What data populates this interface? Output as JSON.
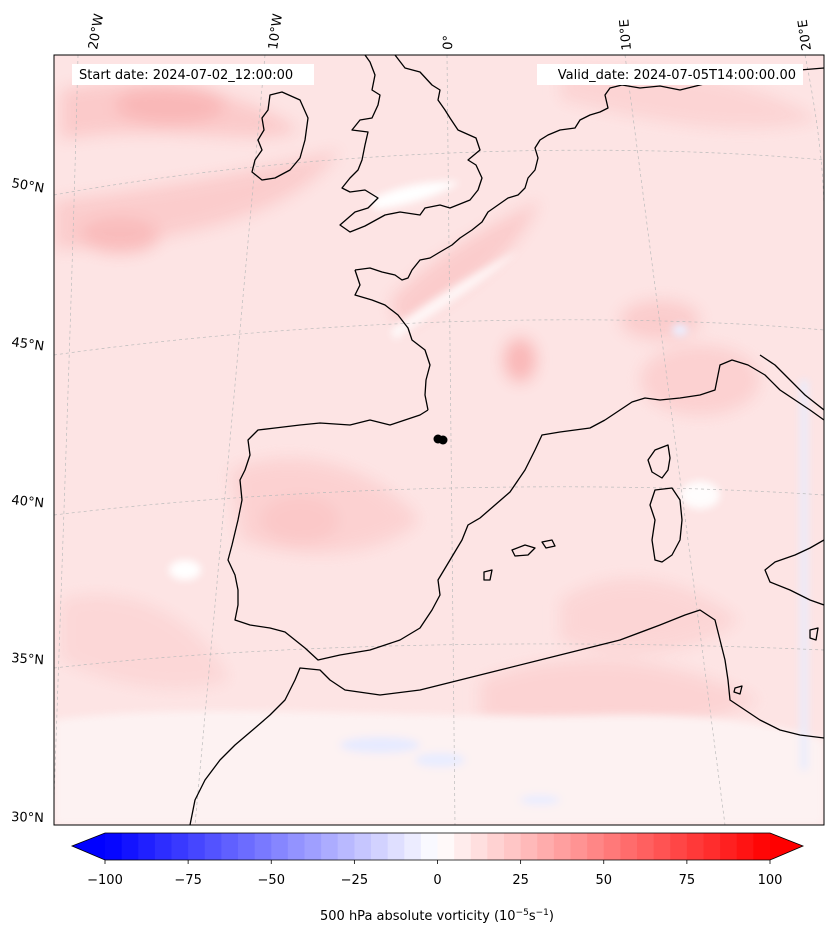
{
  "header": {
    "start_date": "Start date: 2024-07-02_12:00:00",
    "valid_date": "Valid_date: 2024-07-05T14:00:00.00"
  },
  "longitude_labels": [
    "20°W",
    "10°W",
    "0°",
    "10°E",
    "20°E"
  ],
  "latitude_labels": [
    "50°N",
    "45°N",
    "40°N",
    "35°N",
    "30°N"
  ],
  "colorbar": {
    "label": "500 hPa absolute vorticity (10",
    "label_exp1": "−5",
    "label_mid": "s",
    "label_exp2": "−1",
    "label_end": ")",
    "ticks": [
      "−100",
      "−75",
      "−50",
      "−25",
      "0",
      "25",
      "50",
      "75",
      "100"
    ],
    "min": -100,
    "max": 100,
    "negative_color": "#0000ff",
    "positive_color": "#ff0000"
  },
  "map": {
    "field_base_color": "#fde3e3",
    "coastline_color": "#000000",
    "marker": "location-marker"
  }
}
